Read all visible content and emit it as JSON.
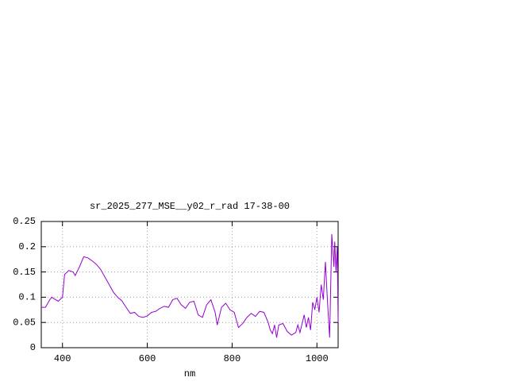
{
  "chart_data": {
    "type": "line",
    "title": "sr_2025_277_MSE__y02_r_rad 17-38-00",
    "x_label": "nm",
    "x": [
      350,
      360,
      370,
      375,
      380,
      390,
      400,
      405,
      415,
      425,
      430,
      440,
      450,
      460,
      470,
      480,
      490,
      500,
      510,
      520,
      530,
      540,
      550,
      560,
      570,
      580,
      590,
      600,
      610,
      620,
      630,
      640,
      650,
      660,
      670,
      680,
      690,
      700,
      710,
      720,
      730,
      740,
      750,
      760,
      765,
      775,
      785,
      795,
      805,
      815,
      825,
      835,
      845,
      855,
      865,
      875,
      885,
      890,
      895,
      900,
      905,
      910,
      920,
      930,
      940,
      950,
      955,
      960,
      970,
      975,
      980,
      985,
      990,
      995,
      1000,
      1005,
      1010,
      1015,
      1020,
      1025,
      1030,
      1035,
      1040,
      1042,
      1045,
      1048,
      1050
    ],
    "series": [
      {
        "name": "sr_2025_277_MSE__y02_r_rad",
        "color": "#9400d3",
        "values": [
          0.08,
          0.08,
          0.095,
          0.1,
          0.097,
          0.092,
          0.1,
          0.145,
          0.153,
          0.15,
          0.143,
          0.16,
          0.18,
          0.178,
          0.172,
          0.165,
          0.155,
          0.14,
          0.125,
          0.11,
          0.1,
          0.093,
          0.08,
          0.068,
          0.07,
          0.062,
          0.06,
          0.063,
          0.07,
          0.072,
          0.078,
          0.082,
          0.08,
          0.095,
          0.098,
          0.085,
          0.078,
          0.09,
          0.092,
          0.065,
          0.06,
          0.085,
          0.095,
          0.07,
          0.045,
          0.08,
          0.088,
          0.075,
          0.07,
          0.04,
          0.048,
          0.06,
          0.068,
          0.062,
          0.072,
          0.07,
          0.05,
          0.035,
          0.028,
          0.045,
          0.02,
          0.045,
          0.048,
          0.032,
          0.025,
          0.03,
          0.045,
          0.03,
          0.065,
          0.04,
          0.06,
          0.035,
          0.09,
          0.075,
          0.1,
          0.07,
          0.125,
          0.095,
          0.17,
          0.09,
          0.02,
          0.225,
          0.16,
          0.21,
          0.15,
          0.2,
          0.05
        ]
      }
    ],
    "xlim": [
      350,
      1050
    ],
    "xticks": [
      400,
      600,
      800,
      1000
    ],
    "ylim": [
      0,
      0.25
    ],
    "yticks": [
      0,
      0.05,
      0.1,
      0.15,
      0.2,
      0.25
    ],
    "grid": true
  }
}
